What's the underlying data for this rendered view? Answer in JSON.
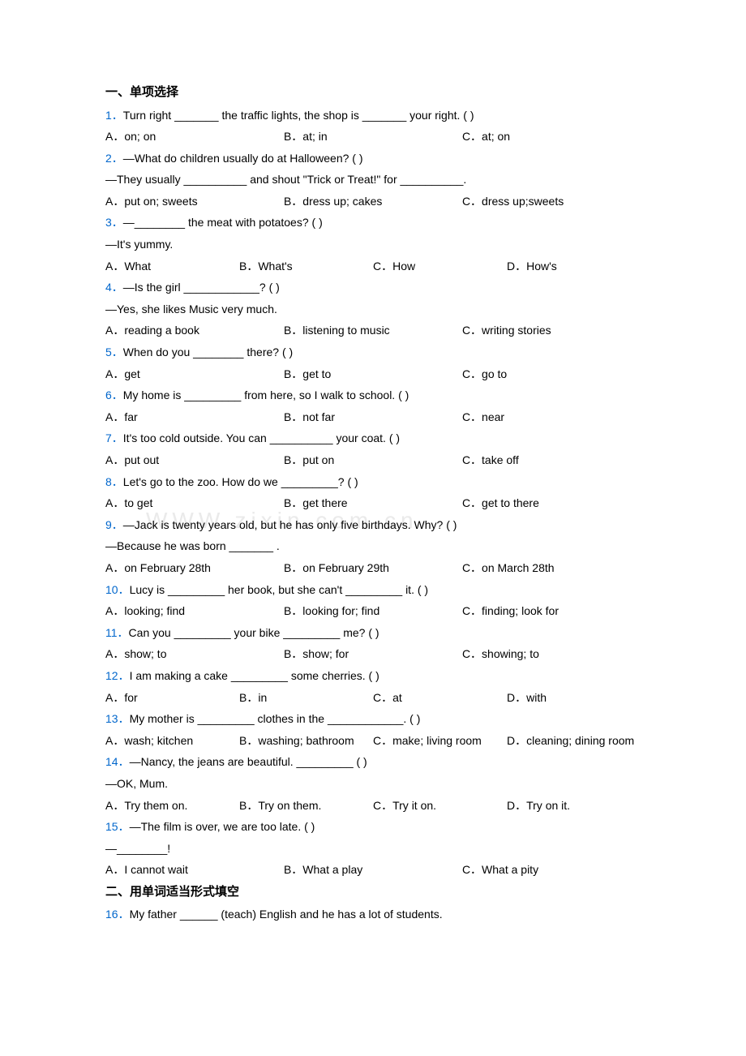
{
  "watermark": "WWW.zixin.com.cn",
  "section1": {
    "heading": "一、单项选择"
  },
  "q1": {
    "num": "1．",
    "text": "Turn right _______ the traffic lights, the shop is _______ your right. (    )",
    "a": "A．on; on",
    "b": "B．at; in",
    "c": "C．at; on"
  },
  "q2": {
    "num": "2．",
    "text": "—What do children usually do at Halloween? (    )",
    "cont": "—They usually __________ and shout \"Trick or Treat!\" for __________.",
    "a": "A．put on; sweets",
    "b": "B．dress up; cakes",
    "c": "C．dress up;sweets"
  },
  "q3": {
    "num": "3．",
    "text": "—________ the meat with potatoes? (    )",
    "cont": "—It's yummy.",
    "a": "A．What",
    "b": "B．What's",
    "c": "C．How",
    "d": "D．How's"
  },
  "q4": {
    "num": "4．",
    "text": "—Is the girl ____________? (    )",
    "cont": "—Yes, she likes Music very much.",
    "a": "A．reading a book",
    "b": "B．listening to music",
    "c": "C．writing stories"
  },
  "q5": {
    "num": "5．",
    "text": "When do you ________ there? (    )",
    "a": "A．get",
    "b": "B．get to",
    "c": "C．go to"
  },
  "q6": {
    "num": "6．",
    "text": "My home is _________ from here, so I walk to school. (     )",
    "a": "A．far",
    "b": "B．not far",
    "c": "C．near"
  },
  "q7": {
    "num": "7．",
    "text": "It's too cold outside. You can __________ your coat. (    )",
    "a": "A．put out",
    "b": "B．put on",
    "c": "C．take off"
  },
  "q8": {
    "num": "8．",
    "text": "Let's go to the zoo. How do we _________? (      )",
    "a": "A．to get",
    "b": "B．get there",
    "c": "C．get to there"
  },
  "q9": {
    "num": "9．",
    "text": "—Jack is twenty years old, but he has only five birthdays. Why? (    )",
    "cont": "—Because he was born _______ .",
    "a": "A．on February 28th",
    "b": "B．on February 29th",
    "c": "C．on March 28th"
  },
  "q10": {
    "num": "10．",
    "text": "Lucy is _________ her book, but she can't _________ it. (    )",
    "a": "A．looking; find",
    "b": "B．looking for; find",
    "c": "C．finding; look for"
  },
  "q11": {
    "num": "11．",
    "text": "Can you _________ your bike _________ me? (     )",
    "a": "A．show; to",
    "b": "B．show; for",
    "c": "C．showing; to"
  },
  "q12": {
    "num": "12．",
    "text": "I am making a cake _________ some cherries. (    )",
    "a": "A．for",
    "b": "B．in",
    "c": "C．at",
    "d": "D．with"
  },
  "q13": {
    "num": "13．",
    "text": "My mother is _________ clothes in the ____________. (    )",
    "a": "A．wash; kitchen",
    "b": "B．washing; bathroom",
    "c": "C．make; living room",
    "d": "D．cleaning; dining room"
  },
  "q14": {
    "num": "14．",
    "text": "—Nancy, the jeans are beautiful. _________ (    )",
    "cont": "—OK, Mum.",
    "a": "A．Try them on.",
    "b": "B．Try on them.",
    "c": "C．Try it on.",
    "d": "D．Try on it."
  },
  "q15": {
    "num": "15．",
    "text": "—The film is over, we are too late. (    )",
    "cont": "—________!",
    "a": "A．I cannot wait",
    "b": "B．What a play",
    "c": "C．What a pity"
  },
  "section2": {
    "heading": "二、用单词适当形式填空"
  },
  "q16": {
    "num": "16．",
    "text": "My father ______ (teach) English and he has a lot of students."
  }
}
